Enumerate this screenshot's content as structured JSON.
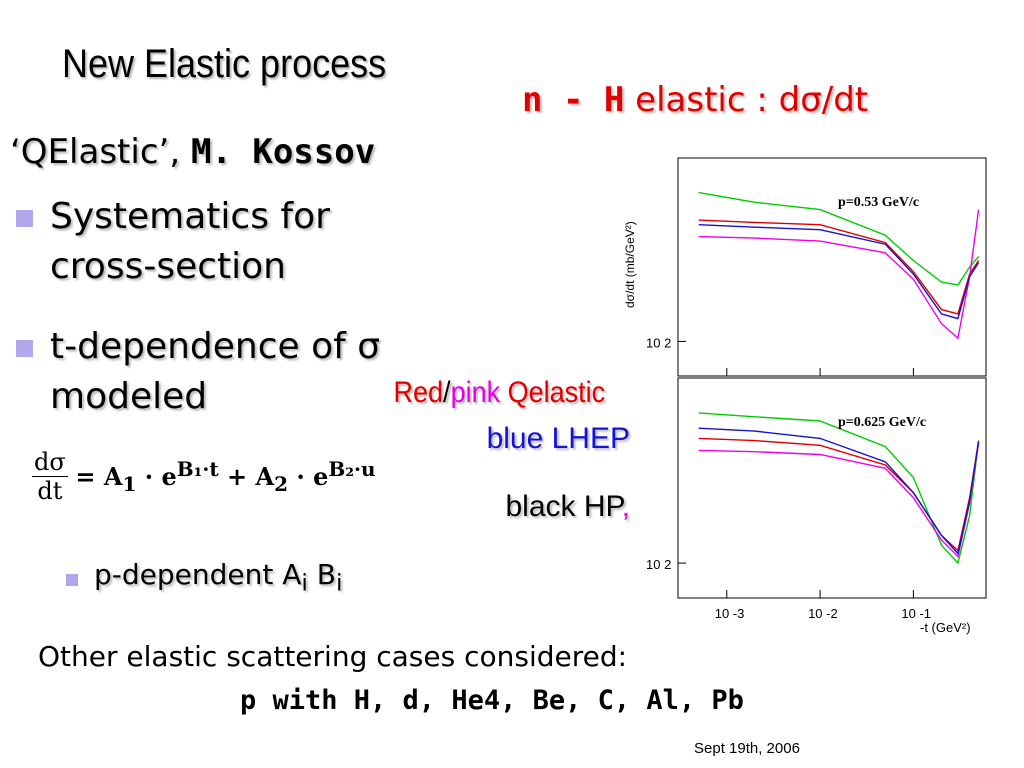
{
  "slide": {
    "title": "New Elastic process",
    "right_title": {
      "bold_part": "n - H",
      "rest": " elastic : dσ/dt"
    },
    "qelastic": {
      "name": "‘QElastic’,",
      "author": "M. Kossov"
    },
    "bullets": [
      {
        "line1": "Systematics for",
        "line2": "cross-section"
      },
      {
        "line1": "t-dependence of σ",
        "line2": "modeled"
      }
    ],
    "formula": {
      "lhs_num": "dσ",
      "lhs_den": "dt",
      "rhs_a1": "= A",
      "a1_sub": "1",
      "b1_dot": " · e",
      "b1_sup": "B₁·t",
      "rhs_a2": " + A",
      "a2_sub": "2",
      "b2_dot": " · e",
      "b2_sup": "B₂·u"
    },
    "sub_bullet": {
      "text": "p-dependent A",
      "sub1": "i",
      "mid": " B",
      "sub2": "i"
    },
    "legend_notes": {
      "red": "Red",
      "slash": "/",
      "pink": "pink",
      "qelastic": " Qelastic",
      "blue": "blue LHEP",
      "black": "black HP",
      "comma": ","
    },
    "other_cases": "Other elastic scattering cases considered:",
    "particles": "p with H, d, He4, Be, C, Al, Pb",
    "date": "Sept 19th, 2006"
  },
  "chart_data": [
    {
      "type": "line",
      "panel_label": "p=0.53 GeV/c",
      "ylabel": "dσ/dt (mb/GeV²)",
      "y_tick_labels": [
        "10 2"
      ],
      "xscale": "log",
      "series": [
        {
          "color": "#00cc00",
          "x": [
            0.0005,
            0.002,
            0.01,
            0.05,
            0.1,
            0.2,
            0.3,
            0.4,
            0.5
          ],
          "y": [
            900,
            780,
            700,
            480,
            330,
            240,
            230,
            300,
            350
          ]
        },
        {
          "color": "#e00000",
          "x": [
            0.0005,
            0.002,
            0.01,
            0.05,
            0.1,
            0.2,
            0.3,
            0.4,
            0.5
          ],
          "y": [
            600,
            580,
            560,
            430,
            280,
            160,
            150,
            270,
            330
          ]
        },
        {
          "color": "#ee00ee",
          "x": [
            0.0005,
            0.002,
            0.01,
            0.05,
            0.1,
            0.2,
            0.3,
            0.4,
            0.5
          ],
          "y": [
            470,
            460,
            440,
            370,
            250,
            130,
            105,
            260,
            700
          ]
        },
        {
          "color": "#1414d0",
          "x": [
            0.0005,
            0.002,
            0.01,
            0.05,
            0.1,
            0.2,
            0.3,
            0.4,
            0.5
          ],
          "y": [
            560,
            540,
            520,
            420,
            270,
            150,
            140,
            260,
            320
          ]
        }
      ]
    },
    {
      "type": "line",
      "panel_label": "p=0.625 GeV/c",
      "y_tick_labels": [
        "10 2"
      ],
      "xscale": "log",
      "x_tick_labels": [
        "10 -3",
        "10 -2",
        "10 -1"
      ],
      "xlabel": "-t (GeV²)",
      "series": [
        {
          "color": "#00cc00",
          "x": [
            0.0005,
            0.002,
            0.01,
            0.05,
            0.1,
            0.2,
            0.3,
            0.4,
            0.5
          ],
          "y": [
            900,
            850,
            800,
            550,
            350,
            130,
            100,
            200,
            600
          ]
        },
        {
          "color": "#e00000",
          "x": [
            0.0005,
            0.002,
            0.01,
            0.05,
            0.1,
            0.2,
            0.3,
            0.4,
            0.5
          ],
          "y": [
            620,
            600,
            560,
            420,
            280,
            150,
            120,
            260,
            600
          ]
        },
        {
          "color": "#ee00ee",
          "x": [
            0.0005,
            0.002,
            0.01,
            0.05,
            0.1,
            0.2,
            0.3,
            0.4,
            0.5
          ],
          "y": [
            520,
            510,
            490,
            400,
            260,
            140,
            110,
            240,
            580
          ]
        },
        {
          "color": "#1414d0",
          "x": [
            0.0005,
            0.002,
            0.01,
            0.05,
            0.1,
            0.2,
            0.3,
            0.4,
            0.5
          ],
          "y": [
            720,
            690,
            620,
            440,
            280,
            150,
            115,
            250,
            590
          ]
        }
      ]
    }
  ]
}
